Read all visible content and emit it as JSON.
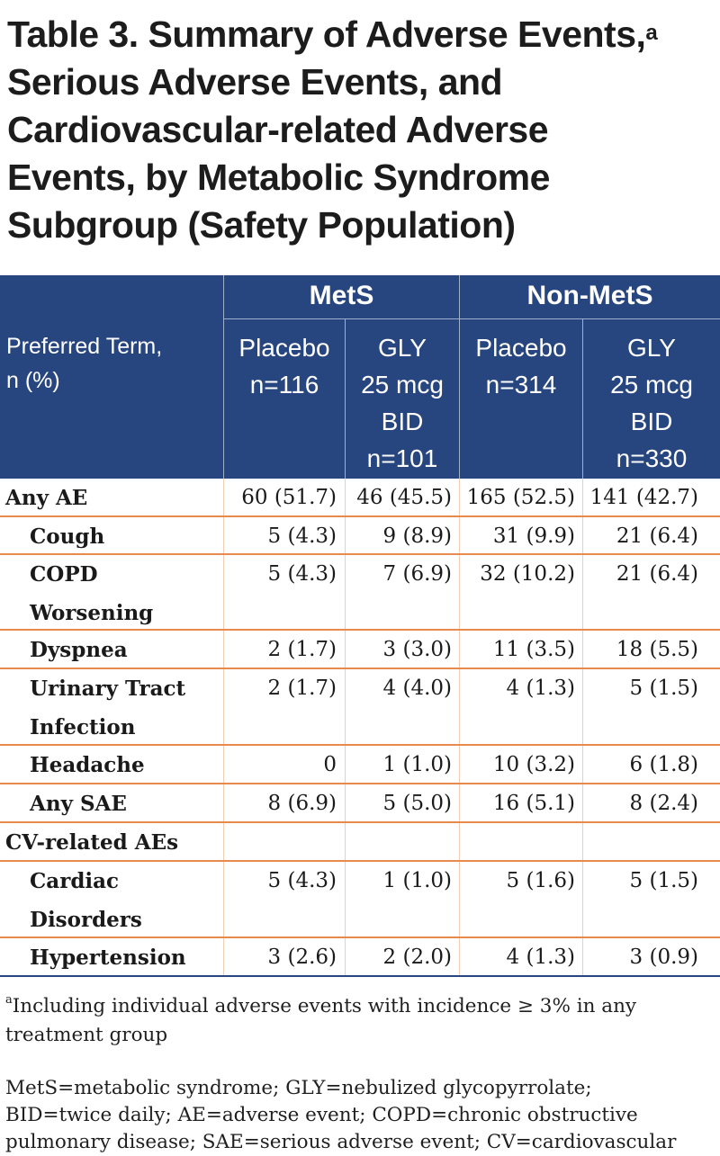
{
  "title": {
    "lines": [
      "Table 3. Summary of Adverse Events,",
      "Serious Adverse Events, and",
      "Cardiovascular-related Adverse",
      "Events, by Metabolic Syndrome",
      "Subgroup (Safety Population)"
    ],
    "superscript": "a"
  },
  "header": {
    "preferred_term": [
      "Preferred Term,",
      "n (%)"
    ],
    "groups": [
      "MetS",
      "Non-MetS"
    ],
    "arms": [
      [
        "Placebo",
        "n=116"
      ],
      [
        "GLY",
        "25 mcg",
        "BID",
        "n=101"
      ],
      [
        "Placebo",
        "n=314"
      ],
      [
        "GLY",
        "25 mcg",
        "BID",
        "n=330"
      ]
    ]
  },
  "rows": [
    {
      "label": [
        "Any AE"
      ],
      "values": [
        "60 (51.7)",
        "46 (45.5)",
        "165 (52.5)",
        "141 (42.7)"
      ]
    },
    {
      "label": [
        "Cough"
      ],
      "values": [
        "5 (4.3)",
        "9 (8.9)",
        "31 (9.9)",
        "21 (6.4)"
      ]
    },
    {
      "label": [
        "COPD",
        "Worsening"
      ],
      "values": [
        "5 (4.3)",
        "7 (6.9)",
        "32 (10.2)",
        "21 (6.4)"
      ]
    },
    {
      "label": [
        "Dyspnea"
      ],
      "values": [
        "2 (1.7)",
        "3 (3.0)",
        "11 (3.5)",
        "18 (5.5)"
      ]
    },
    {
      "label": [
        "Urinary Tract",
        "Infection"
      ],
      "values": [
        "2 (1.7)",
        "4 (4.0)",
        "4 (1.3)",
        "5 (1.5)"
      ]
    },
    {
      "label": [
        "Headache"
      ],
      "values": [
        "0",
        "1 (1.0)",
        "10 (3.2)",
        "6 (1.8)"
      ]
    },
    {
      "label": [
        "Any SAE"
      ],
      "values": [
        "8 (6.9)",
        "5 (5.0)",
        "16 (5.1)",
        "8 (2.4)"
      ]
    },
    {
      "label": [
        "CV-related AEs"
      ],
      "values": [
        "",
        "",
        "",
        ""
      ]
    },
    {
      "label": [
        "Cardiac",
        "Disorders"
      ],
      "values": [
        "5 (4.3)",
        "1 (1.0)",
        "5 (1.6)",
        "5 (1.5)"
      ]
    },
    {
      "label": [
        "Hypertension"
      ],
      "values": [
        "3 (2.6)",
        "2 (2.0)",
        "4 (1.3)",
        "3 (0.9)"
      ]
    }
  ],
  "footnote": {
    "marker": "a",
    "text": "Including individual adverse events with incidence ≥ 3% in any treatment group"
  },
  "abbreviations": [
    "MetS=metabolic syndrome; GLY=nebulized glycopyrrolate;",
    "BID=twice daily; AE=adverse event; COPD=chronic obstructive",
    "pulmonary disease; SAE=serious adverse event; CV=cardiovascular"
  ],
  "colors": {
    "header_bg": "#27457f",
    "row_border": "#e88a4e",
    "header_text": "#ffffff"
  }
}
